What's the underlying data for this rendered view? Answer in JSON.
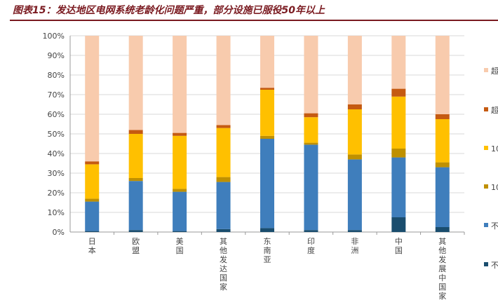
{
  "figure": {
    "title": "图表15：发达地区电网系统老龄化问题严重，部分设施已服役50年以上"
  },
  "chart_data": {
    "type": "bar",
    "stacked": true,
    "categories": [
      "日本",
      "欧盟",
      "美国",
      "其他发达国家",
      "东南亚",
      "印度",
      "非洲",
      "中国",
      "其他发展中国家"
    ],
    "series": [
      {
        "name": "不",
        "color": "#1a4d6e",
        "values": [
          0.5,
          1,
          0.5,
          1.5,
          2,
          1,
          1,
          7.5,
          2.5
        ]
      },
      {
        "name": "不",
        "color": "#3f7ebc",
        "values": [
          15,
          25,
          20,
          24,
          45.5,
          43.5,
          36,
          30.5,
          30.5
        ]
      },
      {
        "name": "10",
        "color": "#bf9000",
        "values": [
          1.5,
          1.5,
          1.5,
          2.5,
          1.5,
          1,
          2.5,
          4.5,
          2.5
        ]
      },
      {
        "name": "10",
        "color": "#ffc000",
        "values": [
          17.5,
          22.5,
          27,
          25,
          23.5,
          13,
          23,
          26.5,
          22
        ]
      },
      {
        "name": "超",
        "color": "#c55a11",
        "values": [
          1.5,
          2,
          1.5,
          1.5,
          1,
          2,
          2.5,
          4,
          2.5
        ]
      },
      {
        "name": "超",
        "color": "#f8cbad",
        "values": [
          64,
          48,
          49.5,
          45.5,
          26.5,
          39.5,
          35,
          27,
          40
        ]
      }
    ],
    "ylim": [
      0,
      100
    ],
    "yticks": [
      "0%",
      "10%",
      "20%",
      "30%",
      "40%",
      "50%",
      "60%",
      "70%",
      "80%",
      "90%",
      "100%"
    ],
    "grid": true,
    "legend": "right"
  }
}
